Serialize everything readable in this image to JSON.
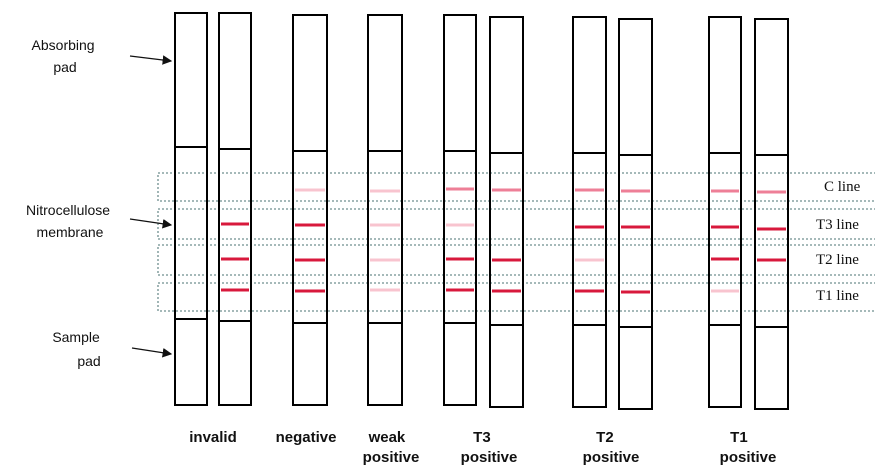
{
  "diagram": {
    "part_labels": {
      "absorbing_pad": [
        "Absorbing",
        "pad"
      ],
      "membrane": [
        "Nitrocellulose",
        "membrane"
      ],
      "sample_pad": [
        "Sample",
        "pad"
      ]
    },
    "line_labels": {
      "c": "C line",
      "t3": "T3 line",
      "t2": "T2 line",
      "t1": "T1 line"
    },
    "captions": {
      "invalid": [
        "invalid"
      ],
      "negative": [
        "negative"
      ],
      "weak": [
        "weak",
        "positive"
      ],
      "t3pos": [
        "T3",
        "positive"
      ],
      "t2pos": [
        "T2",
        "positive"
      ],
      "t1pos": [
        "T1",
        "positive"
      ]
    },
    "colors": {
      "strong": "#d8193c",
      "medium": "#ee7f97",
      "faint": "#f8c4cf",
      "zone_border": "#6f8f8f"
    },
    "strip_bands": {
      "s1": {
        "c": "none",
        "t3": "none",
        "t2": "none",
        "t1": "none"
      },
      "s2": {
        "c": "none",
        "t3": "strong",
        "t2": "strong",
        "t1": "strong"
      },
      "s3": {
        "c": "faint",
        "t3": "strong",
        "t2": "strong",
        "t1": "strong"
      },
      "s4": {
        "c": "faint",
        "t3": "faint",
        "t2": "faint",
        "t1": "faint"
      },
      "s5": {
        "c": "medium",
        "t3": "faint",
        "t2": "strong",
        "t1": "strong"
      },
      "s6": {
        "c": "medium",
        "t3": "none",
        "t2": "strong",
        "t1": "strong"
      },
      "s7": {
        "c": "medium",
        "t3": "strong",
        "t2": "faint",
        "t1": "strong"
      },
      "s8": {
        "c": "medium",
        "t3": "strong",
        "t2": "none",
        "t1": "strong"
      },
      "s9": {
        "c": "medium",
        "t3": "strong",
        "t2": "strong",
        "t1": "faint"
      },
      "s10": {
        "c": "medium",
        "t3": "strong",
        "t2": "strong",
        "t1": "none"
      }
    }
  }
}
